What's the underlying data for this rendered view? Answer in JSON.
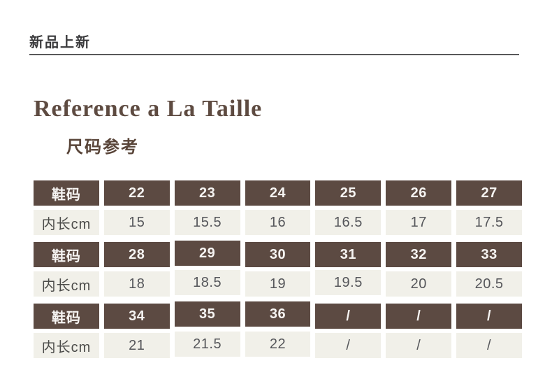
{
  "header": {
    "brand_label": "新品上新"
  },
  "title": "Reference a La Taille",
  "subtitle": "尺码参考",
  "colors": {
    "accent_brown": "#5c4a42",
    "cell_beige": "#f1f0e9",
    "title_brown": "#5e4b41",
    "divider_gray": "#58585a"
  },
  "size_table": {
    "row_label_size": "鞋码",
    "row_label_length": "内长cm",
    "rows": [
      {
        "type": "size",
        "cells": [
          "鞋码",
          "22",
          "23",
          "24",
          "25",
          "26",
          "27"
        ]
      },
      {
        "type": "length",
        "cells": [
          "内长cm",
          "15",
          "15.5",
          "16",
          "16.5",
          "17",
          "17.5"
        ]
      },
      {
        "type": "size",
        "cells": [
          "鞋码",
          "28",
          "29",
          "30",
          "31",
          "32",
          "33"
        ]
      },
      {
        "type": "length",
        "cells": [
          "内长cm",
          "18",
          "18.5",
          "19",
          "19.5",
          "20",
          "20.5"
        ]
      },
      {
        "type": "size",
        "cells": [
          "鞋码",
          "34",
          "35",
          "36",
          "/",
          "/",
          "/"
        ]
      },
      {
        "type": "length",
        "cells": [
          "内长cm",
          "21",
          "21.5",
          "22",
          "/",
          "/",
          "/"
        ]
      }
    ]
  }
}
